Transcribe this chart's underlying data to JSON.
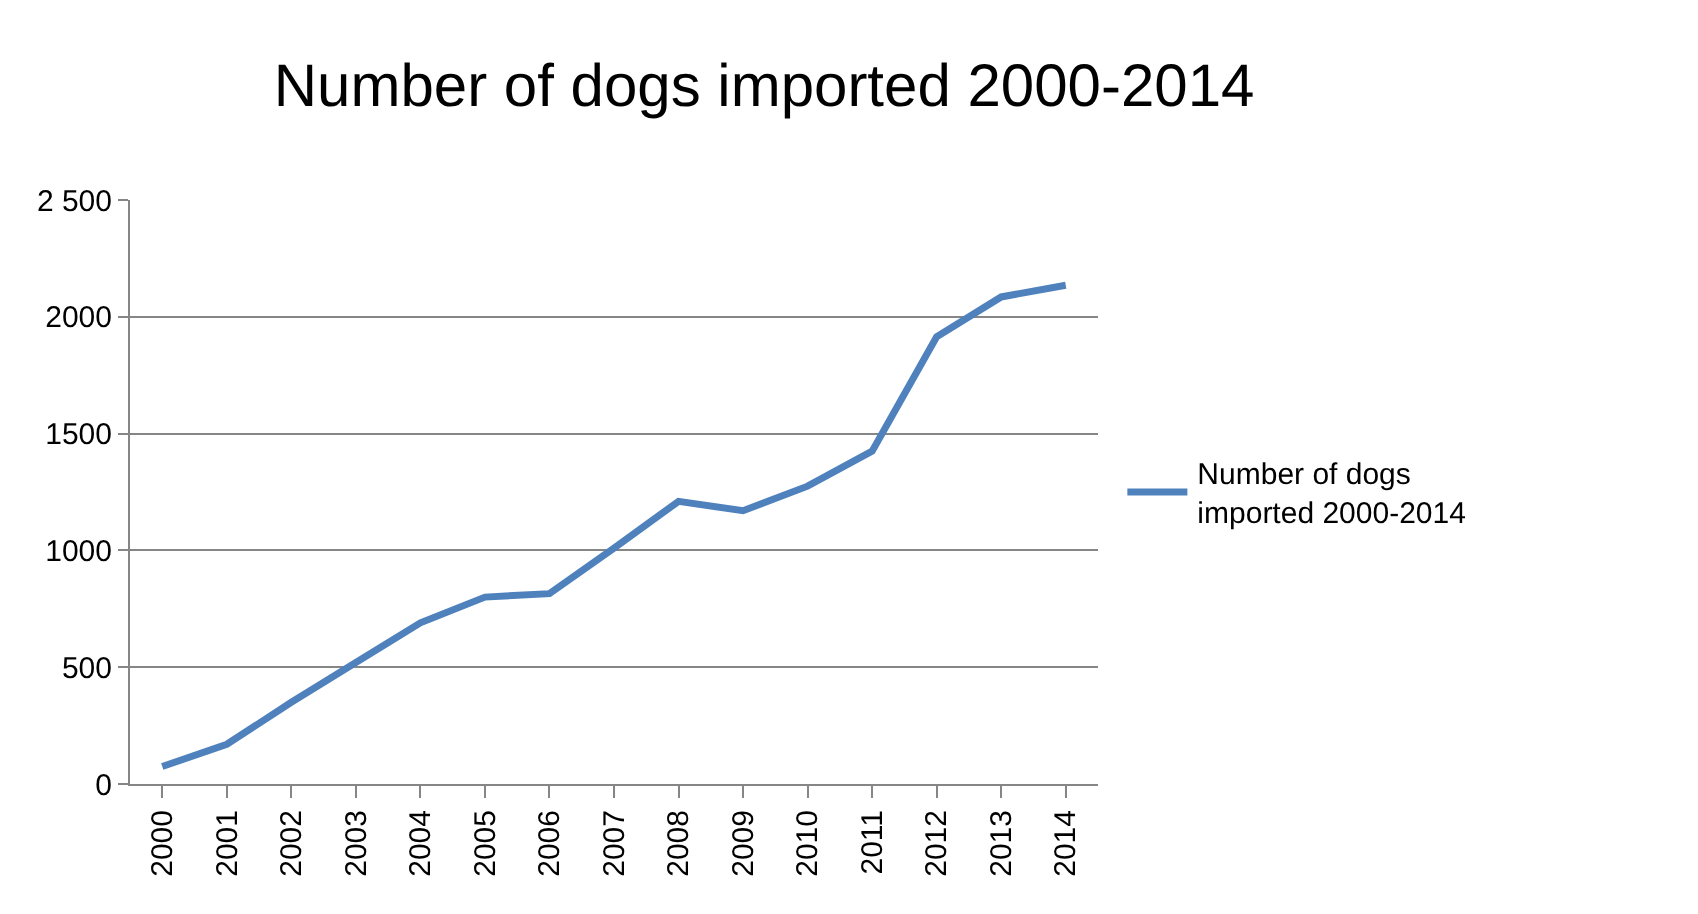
{
  "chart_data": {
    "type": "line",
    "title": "Number of dogs imported 2000-2014",
    "categories": [
      "2000",
      "2001",
      "2002",
      "2003",
      "2004",
      "2005",
      "2006",
      "2007",
      "2008",
      "2009",
      "2010",
      "2011",
      "2012",
      "2013",
      "2014"
    ],
    "series": [
      {
        "name": "Number of dogs imported 2000-2014",
        "color": "#4f81bd",
        "values": [
          75,
          170,
          350,
          520,
          690,
          800,
          815,
          1010,
          1210,
          1170,
          1275,
          1425,
          1915,
          2085,
          2135
        ]
      }
    ],
    "ylim": [
      0,
      2500
    ],
    "yticks": [
      0,
      500,
      1000,
      1500,
      2000,
      {
        "value": 2500,
        "label": "2 500"
      }
    ],
    "grid": "y",
    "legend": "right",
    "marker": "none",
    "line_style": "solid"
  }
}
